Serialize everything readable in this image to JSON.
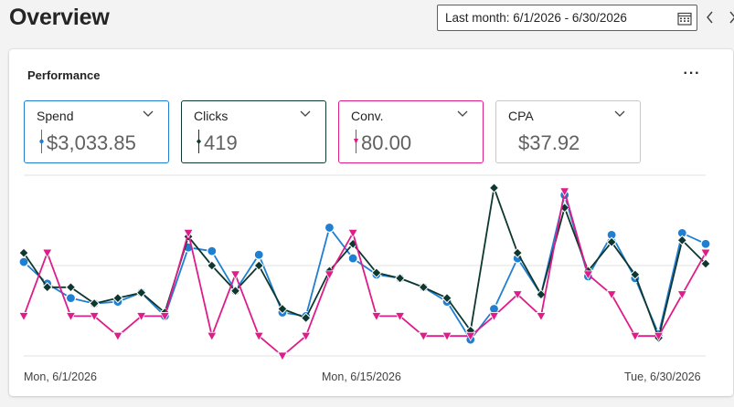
{
  "header": {
    "title": "Overview",
    "date_range": "Last month: 6/1/2026 - 6/30/2026"
  },
  "card": {
    "title": "Performance",
    "more_label": "···"
  },
  "kpis": [
    {
      "label": "Spend",
      "value": "$3,033.85",
      "color": "#1f7fd1",
      "series": "spend"
    },
    {
      "label": "Clicks",
      "value": "419",
      "color": "#0e3730",
      "series": "clicks"
    },
    {
      "label": "Conv.",
      "value": "80.00",
      "color": "#de1c8a",
      "series": "conv"
    },
    {
      "label": "CPA",
      "value": "$37.92",
      "color": "",
      "series": ""
    }
  ],
  "chart_data": {
    "type": "line",
    "x": [
      "6/1",
      "6/2",
      "6/3",
      "6/4",
      "6/5",
      "6/6",
      "6/7",
      "6/8",
      "6/9",
      "6/10",
      "6/11",
      "6/12",
      "6/13",
      "6/14",
      "6/15",
      "6/16",
      "6/17",
      "6/18",
      "6/19",
      "6/20",
      "6/21",
      "6/22",
      "6/23",
      "6/24",
      "6/25",
      "6/26",
      "6/27",
      "6/28",
      "6/29",
      "6/30"
    ],
    "x_tick_labels": [
      "Mon, 6/1/2026",
      "Mon, 6/15/2026",
      "Tue, 6/30/2026"
    ],
    "grid": true,
    "series": [
      {
        "name": "Spend",
        "color": "#1f7fd1",
        "marker": "circle",
        "values": [
          0.52,
          0.4,
          0.32,
          0.29,
          0.3,
          0.35,
          0.22,
          0.6,
          0.58,
          0.36,
          0.56,
          0.24,
          0.22,
          0.71,
          0.54,
          0.45,
          0.43,
          0.38,
          0.3,
          0.09,
          0.26,
          0.54,
          0.34,
          0.89,
          0.44,
          0.67,
          0.43,
          0.12,
          0.68,
          0.62
        ]
      },
      {
        "name": "Clicks",
        "color": "#0e3730",
        "marker": "diamond",
        "values": [
          0.57,
          0.38,
          0.38,
          0.29,
          0.32,
          0.35,
          0.24,
          0.66,
          0.5,
          0.36,
          0.5,
          0.26,
          0.21,
          0.47,
          0.62,
          0.46,
          0.43,
          0.38,
          0.32,
          0.14,
          0.93,
          0.57,
          0.34,
          0.82,
          0.47,
          0.63,
          0.45,
          0.1,
          0.64,
          0.51
        ]
      },
      {
        "name": "Conv.",
        "color": "#de1c8a",
        "marker": "triangle",
        "values": [
          0.22,
          0.57,
          0.22,
          0.22,
          0.11,
          0.22,
          0.22,
          0.68,
          0.11,
          0.45,
          0.11,
          0.0,
          0.11,
          0.45,
          0.68,
          0.22,
          0.22,
          0.11,
          0.11,
          0.11,
          0.22,
          0.34,
          0.22,
          0.91,
          0.45,
          0.34,
          0.11,
          0.11,
          0.34,
          0.57
        ]
      }
    ]
  }
}
